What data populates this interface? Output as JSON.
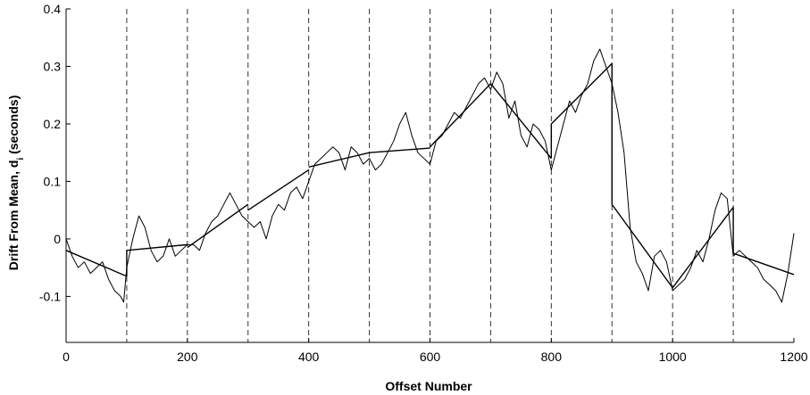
{
  "chart_data": {
    "type": "line",
    "title": "",
    "xlabel": "Offset Number",
    "ylabel_main": "Drift From Mean, d",
    "ylabel_sub": "i",
    "ylabel_unit": " (seconds)",
    "xlim": [
      0,
      1200
    ],
    "ylim": [
      -0.18,
      0.4
    ],
    "x_ticks": [
      0,
      200,
      400,
      600,
      800,
      1000,
      1200
    ],
    "y_ticks": [
      -0.1,
      0,
      0.1,
      0.2,
      0.3,
      0.4
    ],
    "y_tick_labels": [
      "-0.1",
      "0",
      "0.1",
      "0.2",
      "0.3",
      "0.4"
    ],
    "vertical_dashed_lines_at": [
      0,
      100,
      200,
      300,
      400,
      500,
      600,
      700,
      800,
      900,
      1000,
      1100
    ],
    "grid": false,
    "legend": "none",
    "series": [
      {
        "kind": "measured-drift",
        "color": "#000000",
        "x": [
          0,
          10,
          20,
          30,
          40,
          50,
          60,
          70,
          80,
          90,
          95,
          100,
          110,
          120,
          130,
          140,
          150,
          160,
          170,
          180,
          190,
          200,
          210,
          220,
          230,
          240,
          250,
          260,
          270,
          280,
          290,
          300,
          310,
          320,
          330,
          340,
          350,
          360,
          370,
          380,
          390,
          400,
          410,
          420,
          430,
          440,
          450,
          460,
          470,
          480,
          490,
          500,
          510,
          520,
          530,
          540,
          550,
          560,
          570,
          580,
          590,
          600,
          610,
          620,
          630,
          640,
          650,
          660,
          670,
          680,
          690,
          700,
          710,
          720,
          730,
          740,
          750,
          760,
          770,
          780,
          790,
          800,
          810,
          820,
          830,
          840,
          850,
          860,
          870,
          880,
          890,
          900,
          910,
          920,
          930,
          940,
          950,
          960,
          970,
          980,
          990,
          1000,
          1010,
          1020,
          1030,
          1040,
          1050,
          1060,
          1070,
          1080,
          1090,
          1100,
          1110,
          1120,
          1130,
          1140,
          1150,
          1160,
          1170,
          1180,
          1190,
          1200
        ],
        "y": [
          0.0,
          -0.03,
          -0.05,
          -0.04,
          -0.06,
          -0.05,
          -0.04,
          -0.07,
          -0.09,
          -0.1,
          -0.11,
          -0.05,
          0.0,
          0.04,
          0.02,
          -0.02,
          -0.04,
          -0.03,
          0.0,
          -0.03,
          -0.02,
          -0.01,
          -0.01,
          -0.02,
          0.01,
          0.03,
          0.04,
          0.06,
          0.08,
          0.06,
          0.04,
          0.03,
          0.02,
          0.03,
          0.0,
          0.04,
          0.06,
          0.05,
          0.08,
          0.09,
          0.07,
          0.1,
          0.13,
          0.14,
          0.15,
          0.16,
          0.15,
          0.12,
          0.16,
          0.15,
          0.13,
          0.14,
          0.12,
          0.13,
          0.15,
          0.17,
          0.2,
          0.22,
          0.18,
          0.15,
          0.14,
          0.13,
          0.17,
          0.18,
          0.2,
          0.22,
          0.21,
          0.23,
          0.25,
          0.27,
          0.28,
          0.26,
          0.29,
          0.27,
          0.21,
          0.24,
          0.18,
          0.16,
          0.2,
          0.19,
          0.17,
          0.12,
          0.16,
          0.2,
          0.24,
          0.22,
          0.25,
          0.27,
          0.31,
          0.33,
          0.3,
          0.27,
          0.22,
          0.15,
          0.02,
          -0.04,
          -0.06,
          -0.09,
          -0.03,
          -0.02,
          -0.04,
          -0.09,
          -0.08,
          -0.07,
          -0.05,
          -0.02,
          -0.04,
          0.0,
          0.05,
          0.08,
          0.07,
          -0.03,
          -0.02,
          -0.03,
          -0.04,
          -0.05,
          -0.07,
          -0.08,
          -0.09,
          -0.11,
          -0.06,
          0.01
        ]
      },
      {
        "kind": "piecewise-linear-fit",
        "color": "#000000",
        "segments": [
          {
            "x": [
              0,
              100
            ],
            "y": [
              -0.02,
              -0.065
            ]
          },
          {
            "x": [
              100,
              200
            ],
            "y": [
              -0.02,
              -0.01
            ]
          },
          {
            "x": [
              200,
              300
            ],
            "y": [
              -0.015,
              0.06
            ]
          },
          {
            "x": [
              300,
              400
            ],
            "y": [
              0.05,
              0.12
            ]
          },
          {
            "x": [
              400,
              500
            ],
            "y": [
              0.125,
              0.15
            ]
          },
          {
            "x": [
              500,
              600
            ],
            "y": [
              0.15,
              0.158
            ]
          },
          {
            "x": [
              600,
              700
            ],
            "y": [
              0.16,
              0.27
            ]
          },
          {
            "x": [
              700,
              800
            ],
            "y": [
              0.27,
              0.14
            ]
          },
          {
            "x": [
              800,
              900
            ],
            "y": [
              0.2,
              0.305
            ]
          },
          {
            "x": [
              900,
              1000
            ],
            "y": [
              0.06,
              -0.085
            ]
          },
          {
            "x": [
              1000,
              1100
            ],
            "y": [
              -0.085,
              0.055
            ]
          },
          {
            "x": [
              1100,
              1200
            ],
            "y": [
              -0.025,
              -0.062
            ]
          }
        ]
      }
    ]
  }
}
